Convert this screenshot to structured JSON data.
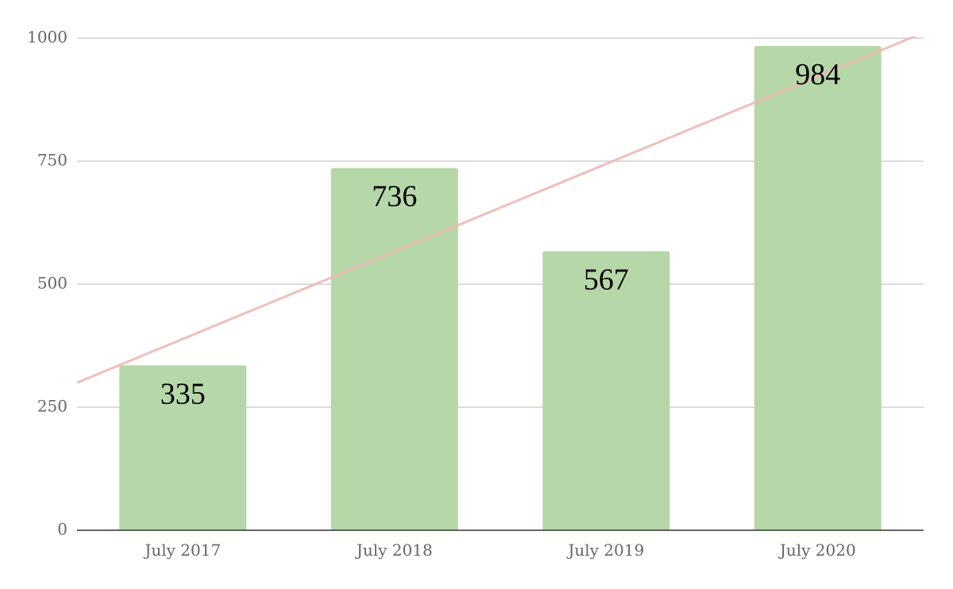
{
  "chart_data": {
    "type": "bar",
    "title": "",
    "xlabel": "",
    "ylabel": "",
    "categories": [
      "July 2017",
      "July 2018",
      "July 2019",
      "July 2020"
    ],
    "values": [
      335,
      736,
      567,
      984
    ],
    "data_labels": [
      "335",
      "736",
      "567",
      "984"
    ],
    "ylim": [
      0,
      1000
    ],
    "yticks": [
      0,
      250,
      500,
      750,
      1000
    ],
    "ytick_labels": [
      "0",
      "250",
      "500",
      "750",
      "1000"
    ],
    "grid": true,
    "legend": "none",
    "trendline": {
      "type": "linear",
      "color": "#f0b8b3"
    },
    "colors": {
      "bar": "#b6d7a8",
      "trendline": "#f0b8b3",
      "gridline": "#c8c8c8",
      "axis": "#333333"
    }
  }
}
